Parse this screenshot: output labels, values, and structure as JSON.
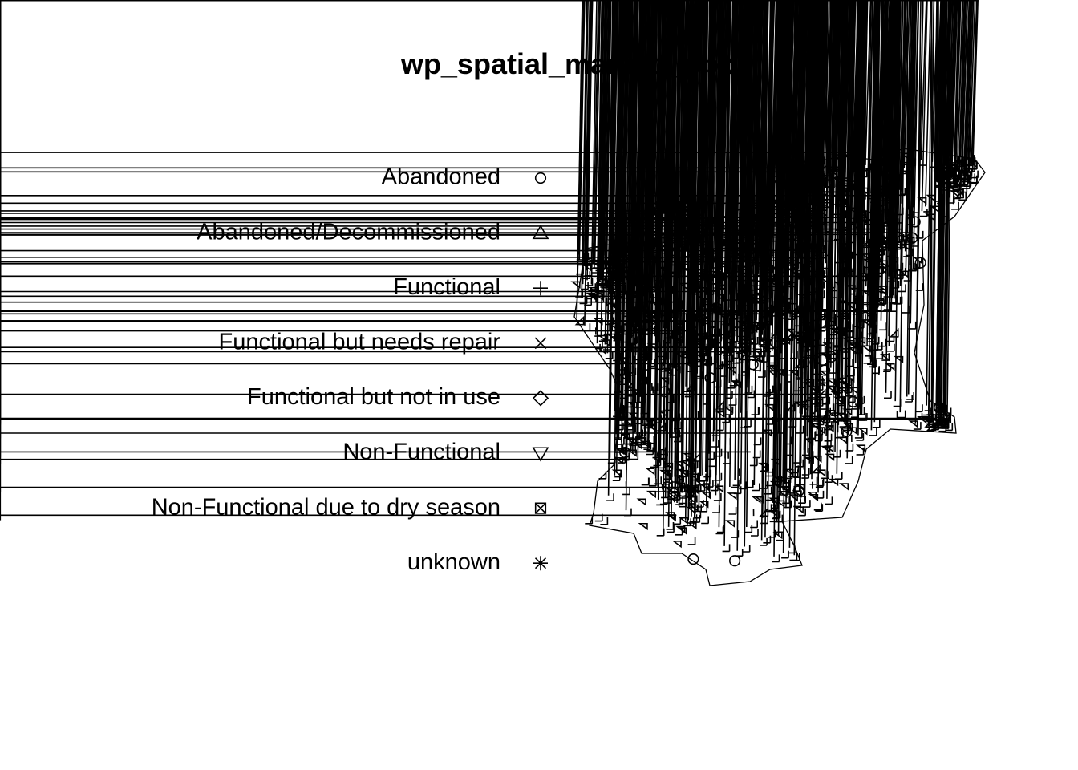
{
  "title": "wp_spatial_marked_ppp",
  "legend": {
    "entries": [
      "Abandoned",
      "Abandoned/Decommissioned",
      "Functional",
      "Functional but needs repair",
      "Functional but not in use",
      "Non-Functional",
      "Non-Functional due to dry season",
      "unknown"
    ]
  }
}
